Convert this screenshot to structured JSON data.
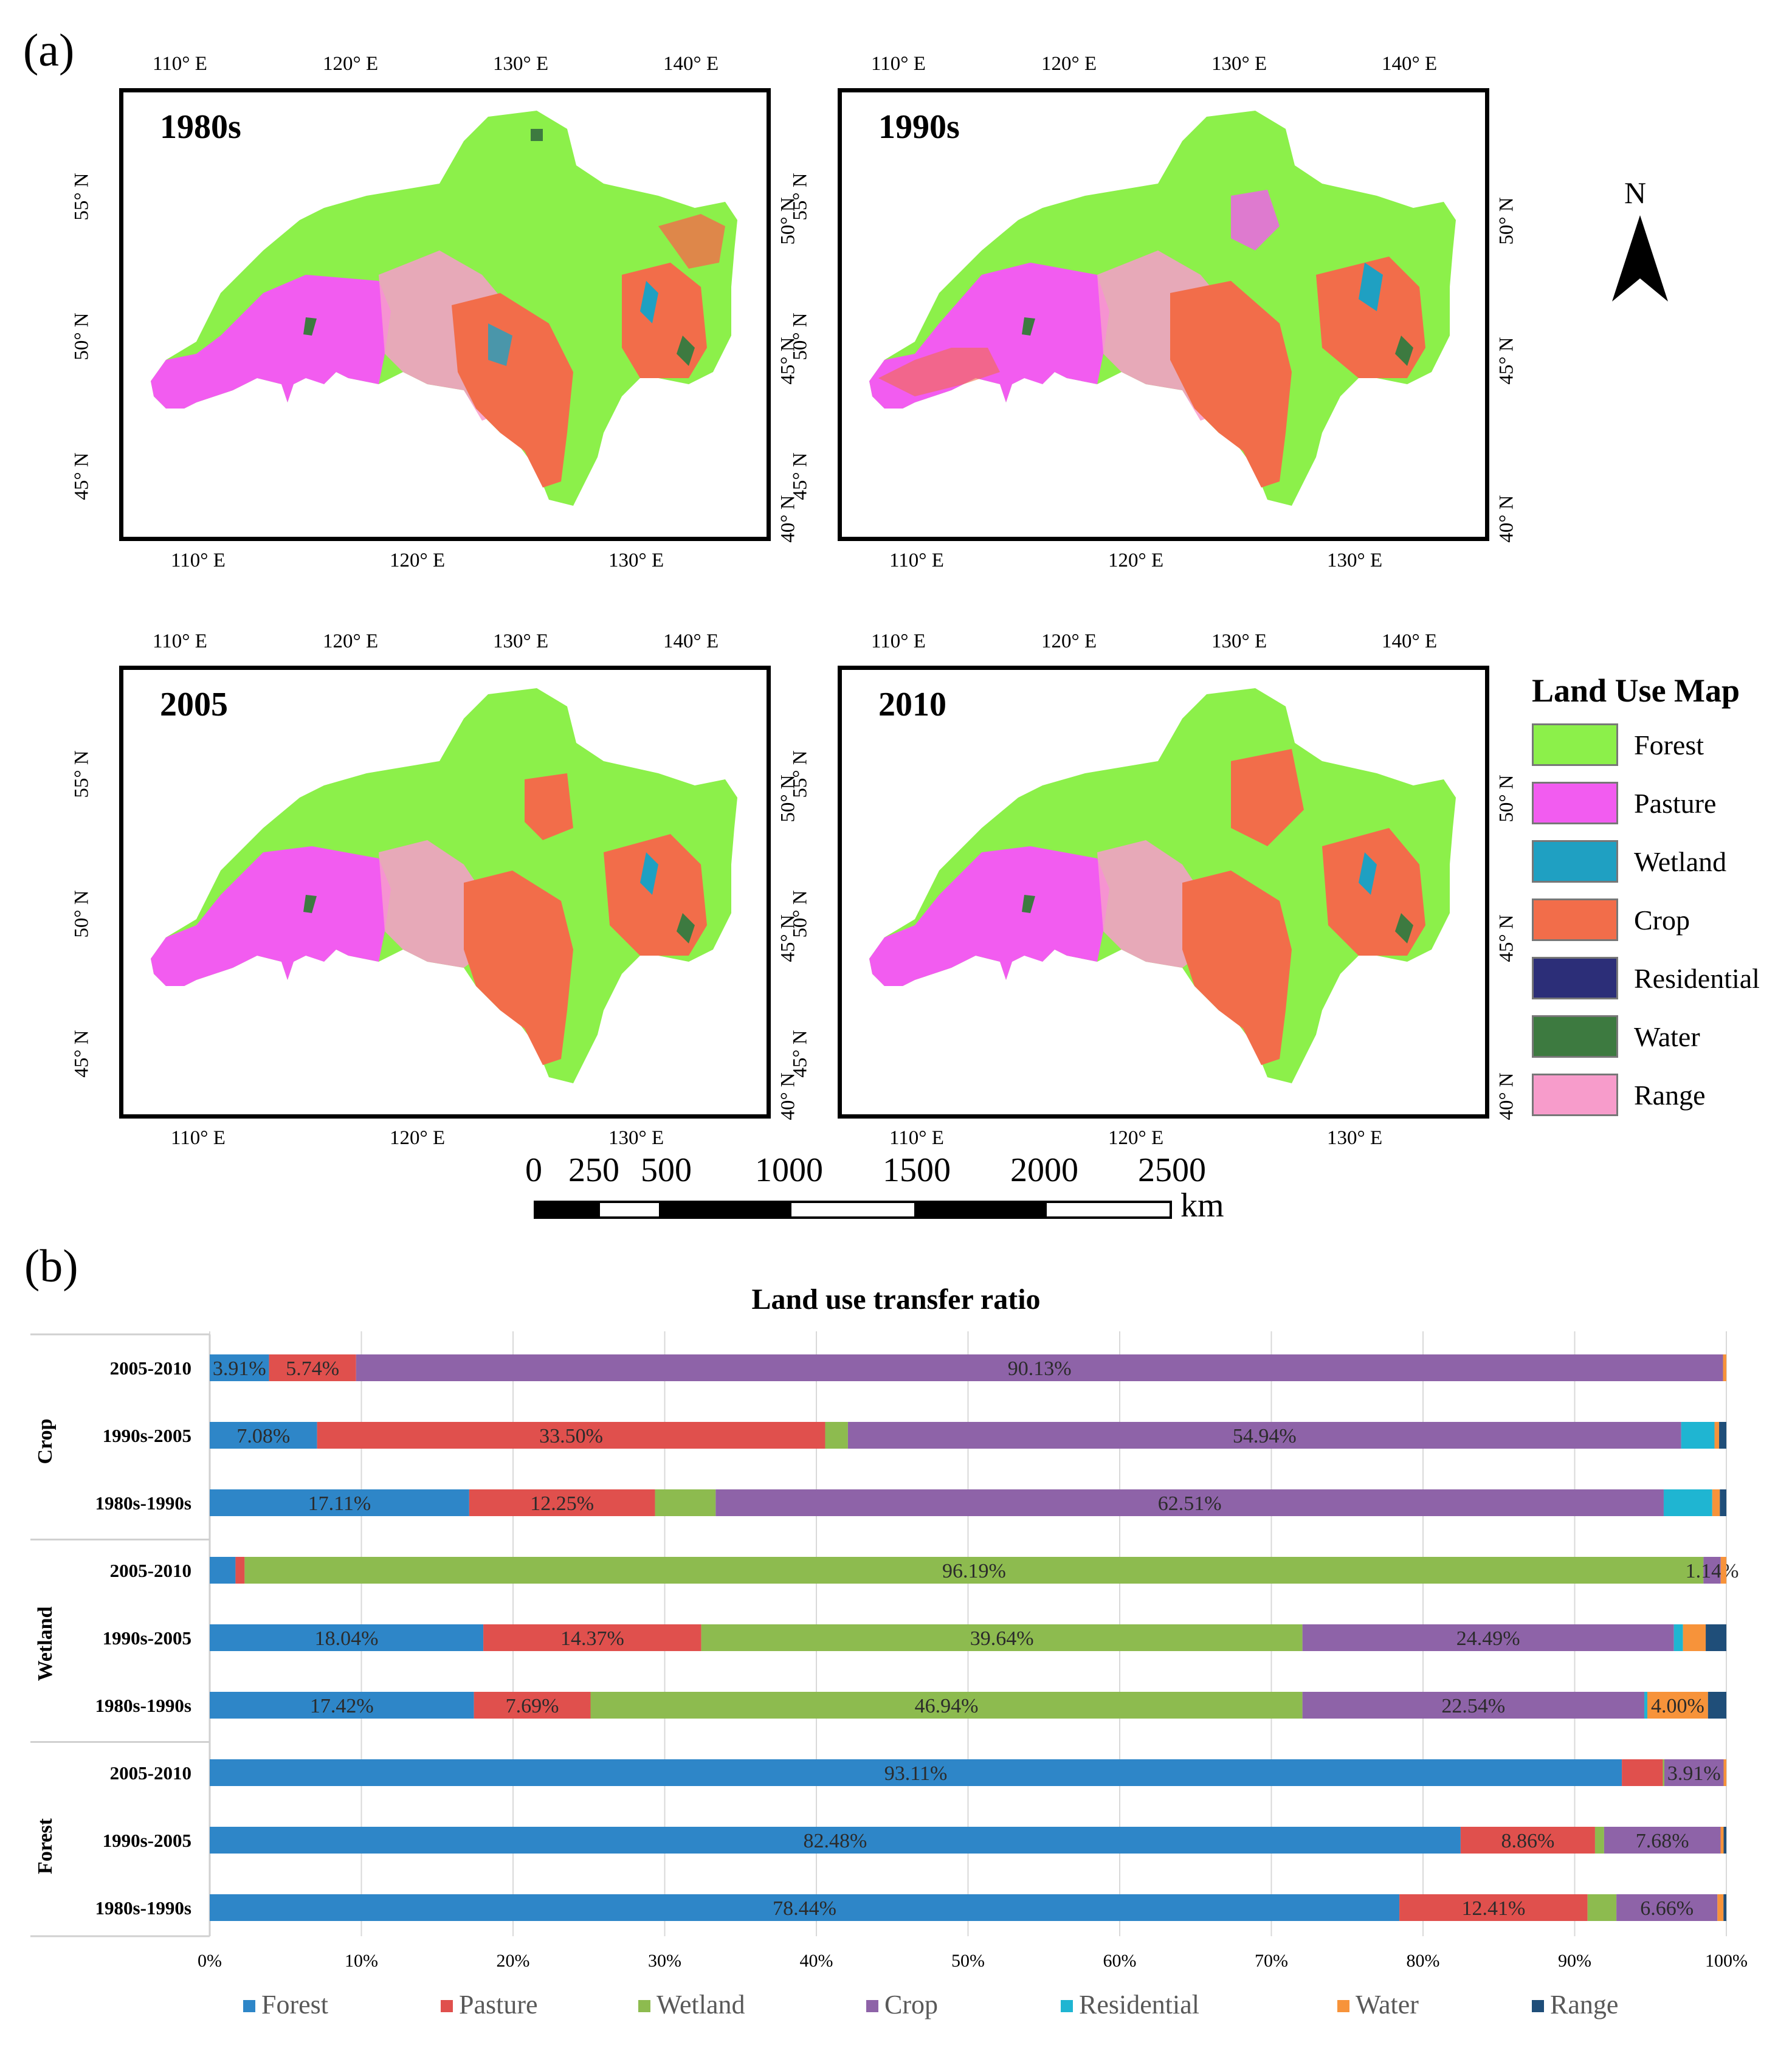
{
  "figure": {
    "panel_a_label": "(a)",
    "panel_b_label": "(b)",
    "maps": [
      {
        "title": "1980s"
      },
      {
        "title": "1990s"
      },
      {
        "title": "2005"
      },
      {
        "title": "2010"
      }
    ],
    "map_ticks": {
      "top": [
        "110° E",
        "120° E",
        "130° E",
        "140° E"
      ],
      "bottom": [
        "110° E",
        "120° E",
        "130° E"
      ],
      "left": [
        "55° N",
        "50° N",
        "45° N"
      ],
      "right": [
        "50° N",
        "45° N",
        "40° N"
      ]
    },
    "north_arrow_label": "N",
    "legend": {
      "title": "Land Use Map",
      "items": [
        {
          "label": "Forest",
          "color": "#8cf04a"
        },
        {
          "label": "Pasture",
          "color": "#f25cf0"
        },
        {
          "label": "Wetland",
          "color": "#1fa0c2"
        },
        {
          "label": "Crop",
          "color": "#f26d4a"
        },
        {
          "label": "Residential",
          "color": "#2c2e78"
        },
        {
          "label": "Water",
          "color": "#3d7a40"
        },
        {
          "label": "Range",
          "color": "#f79ccb"
        }
      ]
    },
    "scale_bar": {
      "labels": [
        "0",
        "250",
        "500",
        "1000",
        "1500",
        "2000",
        "2500"
      ],
      "unit": "km"
    }
  },
  "chart_data": {
    "type": "bar",
    "orientation": "horizontal",
    "stacked": true,
    "title": "Land use transfer ratio",
    "xlim": [
      0,
      100
    ],
    "xticks": [
      "0%",
      "10%",
      "20%",
      "30%",
      "40%",
      "50%",
      "60%",
      "70%",
      "80%",
      "90%",
      "100%"
    ],
    "series_names": [
      "Forest",
      "Pasture",
      "Wetland",
      "Crop",
      "Residential",
      "Water",
      "Range"
    ],
    "series_colors": [
      "#2e86c8",
      "#e0504d",
      "#8dbb4f",
      "#8e63a8",
      "#1fb5d2",
      "#f7933a",
      "#1f4e79"
    ],
    "groups": [
      {
        "name": "Crop",
        "rows": [
          {
            "label": "2005-2010",
            "values": [
              3.91,
              5.74,
              0.0,
              90.13,
              0.0,
              0.22,
              0.0
            ],
            "labels": [
              "3.91%",
              "5.74%",
              "",
              "90.13%",
              "",
              "",
              ""
            ]
          },
          {
            "label": "1990s-2005",
            "values": [
              7.08,
              33.5,
              1.5,
              54.94,
              2.2,
              0.3,
              0.48
            ],
            "labels": [
              "7.08%",
              "33.50%",
              "",
              "54.94%",
              "",
              "",
              ""
            ]
          },
          {
            "label": "1980s-1990s",
            "values": [
              17.11,
              12.25,
              4.0,
              62.51,
              3.2,
              0.5,
              0.43
            ],
            "labels": [
              "17.11%",
              "12.25%",
              "",
              "62.51%",
              "",
              "",
              ""
            ]
          }
        ]
      },
      {
        "name": "Wetland",
        "rows": [
          {
            "label": "2005-2010",
            "values": [
              1.7,
              0.6,
              96.19,
              1.14,
              0.0,
              0.37,
              0.0
            ],
            "labels": [
              "",
              "",
              "96.19%",
              "1.14%",
              "",
              "",
              ""
            ]
          },
          {
            "label": "1990s-2005",
            "values": [
              18.04,
              14.37,
              39.64,
              24.49,
              0.6,
              1.5,
              1.36
            ],
            "labels": [
              "18.04%",
              "14.37%",
              "39.64%",
              "24.49%",
              "",
              "",
              ""
            ]
          },
          {
            "label": "1980s-1990s",
            "values": [
              17.42,
              7.69,
              46.94,
              22.54,
              0.2,
              4.0,
              1.21
            ],
            "labels": [
              "17.42%",
              "7.69%",
              "46.94%",
              "22.54%",
              "",
              "4.00%",
              ""
            ]
          }
        ]
      },
      {
        "name": "Forest",
        "rows": [
          {
            "label": "2005-2010",
            "values": [
              93.11,
              2.7,
              0.1,
              3.91,
              0.0,
              0.18,
              0.0
            ],
            "labels": [
              "93.11%",
              "",
              "",
              "3.91%",
              "",
              "",
              ""
            ]
          },
          {
            "label": "1990s-2005",
            "values": [
              82.48,
              8.86,
              0.6,
              7.68,
              0.0,
              0.2,
              0.18
            ],
            "labels": [
              "82.48%",
              "8.86%",
              "",
              "7.68%",
              "",
              "",
              ""
            ]
          },
          {
            "label": "1980s-1990s",
            "values": [
              78.44,
              12.41,
              1.9,
              6.66,
              0.0,
              0.4,
              0.19
            ],
            "labels": [
              "78.44%",
              "12.41%",
              "",
              "6.66%",
              "",
              "",
              ""
            ]
          }
        ]
      }
    ],
    "legend": [
      "Forest",
      "Pasture",
      "Wetland",
      "Crop",
      "Residential",
      "Water",
      "Range"
    ],
    "legend_position": "bottom"
  }
}
